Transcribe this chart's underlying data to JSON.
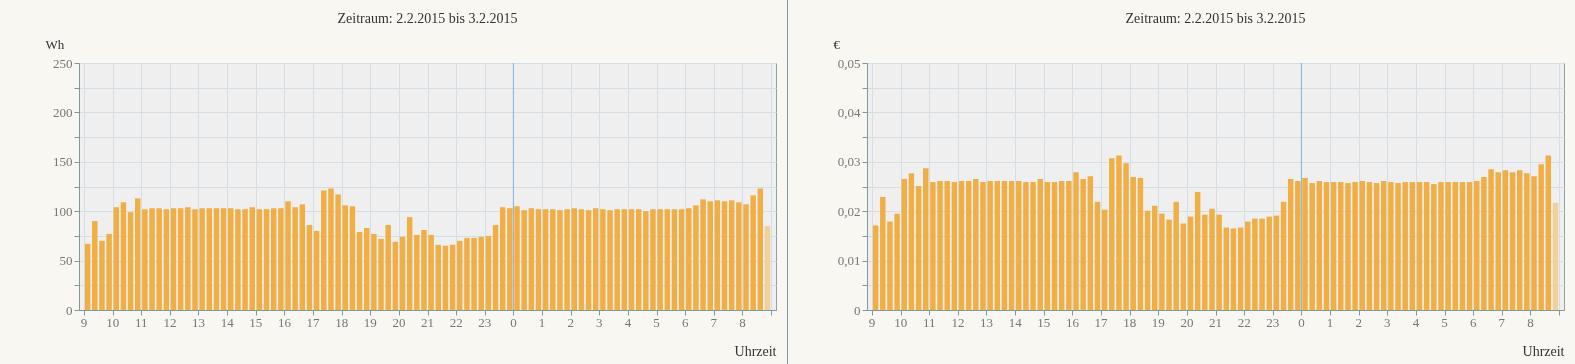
{
  "chart_data": [
    {
      "type": "bar",
      "title": "Zeitraum: 2.2.2015 bis 3.2.2015",
      "xlabel": "Uhrzeit",
      "ylabel": "Wh",
      "x": [
        "2015-02-02T09:00",
        "2015-02-02T09:15",
        "2015-02-02T09:30",
        "2015-02-02T09:45",
        "2015-02-02T10:00",
        "2015-02-02T10:15",
        "2015-02-02T10:30",
        "2015-02-02T10:45",
        "2015-02-02T11:00",
        "2015-02-02T11:15",
        "2015-02-02T11:30",
        "2015-02-02T11:45",
        "2015-02-02T12:00",
        "2015-02-02T12:15",
        "2015-02-02T12:30",
        "2015-02-02T12:45",
        "2015-02-02T13:00",
        "2015-02-02T13:15",
        "2015-02-02T13:30",
        "2015-02-02T13:45",
        "2015-02-02T14:00",
        "2015-02-02T14:15",
        "2015-02-02T14:30",
        "2015-02-02T14:45",
        "2015-02-02T15:00",
        "2015-02-02T15:15",
        "2015-02-02T15:30",
        "2015-02-02T15:45",
        "2015-02-02T16:00",
        "2015-02-02T16:15",
        "2015-02-02T16:30",
        "2015-02-02T16:45",
        "2015-02-02T17:00",
        "2015-02-02T17:15",
        "2015-02-02T17:30",
        "2015-02-02T17:45",
        "2015-02-02T18:00",
        "2015-02-02T18:15",
        "2015-02-02T18:30",
        "2015-02-02T18:45",
        "2015-02-02T19:00",
        "2015-02-02T19:15",
        "2015-02-02T19:30",
        "2015-02-02T19:45",
        "2015-02-02T20:00",
        "2015-02-02T20:15",
        "2015-02-02T20:30",
        "2015-02-02T20:45",
        "2015-02-02T21:00",
        "2015-02-02T21:15",
        "2015-02-02T21:30",
        "2015-02-02T21:45",
        "2015-02-02T22:00",
        "2015-02-02T22:15",
        "2015-02-02T22:30",
        "2015-02-02T22:45",
        "2015-02-02T23:00",
        "2015-02-02T23:15",
        "2015-02-02T23:30",
        "2015-02-02T23:45",
        "2015-02-03T00:00",
        "2015-02-03T00:15",
        "2015-02-03T00:30",
        "2015-02-03T00:45",
        "2015-02-03T01:00",
        "2015-02-03T01:15",
        "2015-02-03T01:30",
        "2015-02-03T01:45",
        "2015-02-03T02:00",
        "2015-02-03T02:15",
        "2015-02-03T02:30",
        "2015-02-03T02:45",
        "2015-02-03T03:00",
        "2015-02-03T03:15",
        "2015-02-03T03:30",
        "2015-02-03T03:45",
        "2015-02-03T04:00",
        "2015-02-03T04:15",
        "2015-02-03T04:30",
        "2015-02-03T04:45",
        "2015-02-03T05:00",
        "2015-02-03T05:15",
        "2015-02-03T05:30",
        "2015-02-03T05:45",
        "2015-02-03T06:00",
        "2015-02-03T06:15",
        "2015-02-03T06:30",
        "2015-02-03T06:45",
        "2015-02-03T07:00",
        "2015-02-03T07:15",
        "2015-02-03T07:30",
        "2015-02-03T07:45",
        "2015-02-03T08:00",
        "2015-02-03T08:15",
        "2015-02-03T08:30",
        "2015-02-03T08:45"
      ],
      "values": [
        67,
        90,
        70,
        77,
        104,
        109,
        99,
        113,
        102,
        103,
        103,
        102,
        103,
        103,
        104,
        102,
        103,
        103,
        103,
        103,
        103,
        102,
        102,
        104,
        102,
        102,
        103,
        103,
        110,
        104,
        107,
        86,
        80,
        121,
        123,
        117,
        106,
        105,
        79,
        83,
        77,
        72,
        86,
        69,
        74,
        94,
        76,
        81,
        76,
        66,
        65,
        66,
        70,
        73,
        73,
        74,
        75,
        86,
        104,
        103,
        105,
        101,
        103,
        102,
        102,
        102,
        101,
        102,
        103,
        102,
        101,
        103,
        102,
        101,
        102,
        102,
        102,
        102,
        100,
        102,
        102,
        102,
        102,
        102,
        103,
        106,
        112,
        110,
        111,
        110,
        111,
        109,
        107,
        116,
        123,
        85
      ],
      "colors": [
        "#f0ae45",
        "#f0ae45",
        "#f0ae45",
        "#f0ae45",
        "#f0ae45",
        "#f0ae45",
        "#f0ae45",
        "#f0ae45",
        "#f0ae45",
        "#f0ae45",
        "#f0ae45",
        "#f0ae45",
        "#f0ae45",
        "#f0ae45",
        "#f0ae45",
        "#f0ae45",
        "#f0ae45",
        "#f0ae45",
        "#f0ae45",
        "#f0ae45",
        "#f0ae45",
        "#f0ae45",
        "#f0ae45",
        "#f0ae45",
        "#f0ae45",
        "#f0ae45",
        "#f0ae45",
        "#f0ae45",
        "#f0ae45",
        "#f0ae45",
        "#f0ae45",
        "#f0ae45",
        "#f0ae45",
        "#f0ae45",
        "#f0ae45",
        "#f0ae45",
        "#f0ae45",
        "#f0ae45",
        "#f0ae45",
        "#f0ae45",
        "#f0ae45",
        "#f0ae45",
        "#f0ae45",
        "#f0ae45",
        "#f0ae45",
        "#f0ae45",
        "#f0ae45",
        "#f0ae45",
        "#f0ae45",
        "#f0ae45",
        "#f0ae45",
        "#f0ae45",
        "#f0ae45",
        "#f0ae45",
        "#f0ae45",
        "#f0ae45",
        "#f0ae45",
        "#f0ae45",
        "#f0ae45",
        "#f0ae45",
        "#f0ae45",
        "#f0ae45",
        "#f0ae45",
        "#f0ae45",
        "#f0ae45",
        "#f0ae45",
        "#f0ae45",
        "#f0ae45",
        "#f0ae45",
        "#f0ae45",
        "#f0ae45",
        "#f0ae45",
        "#f0ae45",
        "#f0ae45",
        "#f0ae45",
        "#f0ae45",
        "#f0ae45",
        "#f0ae45",
        "#f0ae45",
        "#f0ae45",
        "#f0ae45",
        "#f0ae45",
        "#f0ae45",
        "#f0ae45",
        "#f0ae45",
        "#f0ae45",
        "#f0ae45",
        "#f0ae45",
        "#f0ae45",
        "#f0ae45",
        "#f0ae45",
        "#f0ae45",
        "#f0ae45",
        "#f0ae45",
        "#f0ae45",
        "#f2d09c"
      ],
      "xlim": [
        "2015-02-02T09:00",
        "2015-02-03T09:00"
      ],
      "xticks": [
        {
          "value": "2015-02-02T09:00",
          "label": "9"
        },
        {
          "value": "2015-02-02T10:00",
          "label": "10"
        },
        {
          "value": "2015-02-02T11:00",
          "label": "11"
        },
        {
          "value": "2015-02-02T12:00",
          "label": "12"
        },
        {
          "value": "2015-02-02T13:00",
          "label": "13"
        },
        {
          "value": "2015-02-02T14:00",
          "label": "14"
        },
        {
          "value": "2015-02-02T15:00",
          "label": "15"
        },
        {
          "value": "2015-02-02T16:00",
          "label": "16"
        },
        {
          "value": "2015-02-02T17:00",
          "label": "17"
        },
        {
          "value": "2015-02-02T18:00",
          "label": "18"
        },
        {
          "value": "2015-02-02T19:00",
          "label": "19"
        },
        {
          "value": "2015-02-02T20:00",
          "label": "20"
        },
        {
          "value": "2015-02-02T21:00",
          "label": "21"
        },
        {
          "value": "2015-02-02T22:00",
          "label": "22"
        },
        {
          "value": "2015-02-02T23:00",
          "label": "23"
        },
        {
          "value": "2015-02-03T00:00",
          "label": "0"
        },
        {
          "value": "2015-02-03T01:00",
          "label": "1"
        },
        {
          "value": "2015-02-03T02:00",
          "label": "2"
        },
        {
          "value": "2015-02-03T03:00",
          "label": "3"
        },
        {
          "value": "2015-02-03T04:00",
          "label": "4"
        },
        {
          "value": "2015-02-03T05:00",
          "label": "5"
        },
        {
          "value": "2015-02-03T06:00",
          "label": "6"
        },
        {
          "value": "2015-02-03T07:00",
          "label": "7"
        },
        {
          "value": "2015-02-03T08:00",
          "label": "8"
        },
        {
          "value": "2015-02-03T09:00",
          "label": null
        }
      ],
      "ylim": [
        0,
        250
      ],
      "yticks": [
        0,
        {
          "value": 25,
          "label": null
        },
        50,
        {
          "value": 75,
          "label": null
        },
        100,
        {
          "value": 125,
          "label": null
        },
        150,
        {
          "value": 175,
          "label": null
        },
        200,
        {
          "value": 225,
          "label": null
        },
        250
      ],
      "grid": true,
      "ref_lines": [
        {
          "axis": "x",
          "value": "2015-02-03T00:00",
          "label": null,
          "color": "#7fb6e6"
        }
      ]
    },
    {
      "type": "bar",
      "title": "Zeitraum: 2.2.2015 bis 3.2.2015",
      "xlabel": "Uhrzeit",
      "ylabel": "€",
      "x": [
        "2015-02-02T09:00",
        "2015-02-02T09:15",
        "2015-02-02T09:30",
        "2015-02-02T09:45",
        "2015-02-02T10:00",
        "2015-02-02T10:15",
        "2015-02-02T10:30",
        "2015-02-02T10:45",
        "2015-02-02T11:00",
        "2015-02-02T11:15",
        "2015-02-02T11:30",
        "2015-02-02T11:45",
        "2015-02-02T12:00",
        "2015-02-02T12:15",
        "2015-02-02T12:30",
        "2015-02-02T12:45",
        "2015-02-02T13:00",
        "2015-02-02T13:15",
        "2015-02-02T13:30",
        "2015-02-02T13:45",
        "2015-02-02T14:00",
        "2015-02-02T14:15",
        "2015-02-02T14:30",
        "2015-02-02T14:45",
        "2015-02-02T15:00",
        "2015-02-02T15:15",
        "2015-02-02T15:30",
        "2015-02-02T15:45",
        "2015-02-02T16:00",
        "2015-02-02T16:15",
        "2015-02-02T16:30",
        "2015-02-02T16:45",
        "2015-02-02T17:00",
        "2015-02-02T17:15",
        "2015-02-02T17:30",
        "2015-02-02T17:45",
        "2015-02-02T18:00",
        "2015-02-02T18:15",
        "2015-02-02T18:30",
        "2015-02-02T18:45",
        "2015-02-02T19:00",
        "2015-02-02T19:15",
        "2015-02-02T19:30",
        "2015-02-02T19:45",
        "2015-02-02T20:00",
        "2015-02-02T20:15",
        "2015-02-02T20:30",
        "2015-02-02T20:45",
        "2015-02-02T21:00",
        "2015-02-02T21:15",
        "2015-02-02T21:30",
        "2015-02-02T21:45",
        "2015-02-02T22:00",
        "2015-02-02T22:15",
        "2015-02-02T22:30",
        "2015-02-02T22:45",
        "2015-02-02T23:00",
        "2015-02-02T23:15",
        "2015-02-02T23:30",
        "2015-02-02T23:45",
        "2015-02-03T00:00",
        "2015-02-03T00:15",
        "2015-02-03T00:30",
        "2015-02-03T00:45",
        "2015-02-03T01:00",
        "2015-02-03T01:15",
        "2015-02-03T01:30",
        "2015-02-03T01:45",
        "2015-02-03T02:00",
        "2015-02-03T02:15",
        "2015-02-03T02:30",
        "2015-02-03T02:45",
        "2015-02-03T03:00",
        "2015-02-03T03:15",
        "2015-02-03T03:30",
        "2015-02-03T03:45",
        "2015-02-03T04:00",
        "2015-02-03T04:15",
        "2015-02-03T04:30",
        "2015-02-03T04:45",
        "2015-02-03T05:00",
        "2015-02-03T05:15",
        "2015-02-03T05:30",
        "2015-02-03T05:45",
        "2015-02-03T06:00",
        "2015-02-03T06:15",
        "2015-02-03T06:30",
        "2015-02-03T06:45",
        "2015-02-03T07:00",
        "2015-02-03T07:15",
        "2015-02-03T07:30",
        "2015-02-03T07:45",
        "2015-02-03T08:00",
        "2015-02-03T08:15",
        "2015-02-03T08:30",
        "2015-02-03T08:45"
      ],
      "values": [
        0.0171,
        0.0229,
        0.0179,
        0.0195,
        0.0265,
        0.0277,
        0.0251,
        0.0287,
        0.0259,
        0.0261,
        0.0261,
        0.0259,
        0.0261,
        0.0261,
        0.0265,
        0.0259,
        0.0261,
        0.0261,
        0.0261,
        0.0261,
        0.0261,
        0.0259,
        0.0259,
        0.0265,
        0.0259,
        0.0259,
        0.0261,
        0.0261,
        0.0279,
        0.0265,
        0.0271,
        0.0219,
        0.0203,
        0.0307,
        0.0313,
        0.0297,
        0.0269,
        0.0267,
        0.0201,
        0.0211,
        0.0195,
        0.0183,
        0.0219,
        0.0175,
        0.0189,
        0.0239,
        0.0193,
        0.0205,
        0.0193,
        0.0167,
        0.0165,
        0.0167,
        0.0179,
        0.0185,
        0.0185,
        0.0189,
        0.0191,
        0.0219,
        0.0265,
        0.0261,
        0.0267,
        0.0257,
        0.0261,
        0.0259,
        0.0259,
        0.0259,
        0.0257,
        0.0259,
        0.0261,
        0.0259,
        0.0257,
        0.0261,
        0.0259,
        0.0257,
        0.0259,
        0.0259,
        0.0259,
        0.0259,
        0.0255,
        0.0259,
        0.0259,
        0.0259,
        0.0259,
        0.0259,
        0.0261,
        0.0269,
        0.0285,
        0.0279,
        0.0283,
        0.0279,
        0.0283,
        0.0277,
        0.0271,
        0.0295,
        0.0313,
        0.0217
      ],
      "colors": [
        "#f0ae45",
        "#f0ae45",
        "#f0ae45",
        "#f0ae45",
        "#f0ae45",
        "#f0ae45",
        "#f0ae45",
        "#f0ae45",
        "#f0ae45",
        "#f0ae45",
        "#f0ae45",
        "#f0ae45",
        "#f0ae45",
        "#f0ae45",
        "#f0ae45",
        "#f0ae45",
        "#f0ae45",
        "#f0ae45",
        "#f0ae45",
        "#f0ae45",
        "#f0ae45",
        "#f0ae45",
        "#f0ae45",
        "#f0ae45",
        "#f0ae45",
        "#f0ae45",
        "#f0ae45",
        "#f0ae45",
        "#f0ae45",
        "#f0ae45",
        "#f0ae45",
        "#f0ae45",
        "#f0ae45",
        "#f0ae45",
        "#f0ae45",
        "#f0ae45",
        "#f0ae45",
        "#f0ae45",
        "#f0ae45",
        "#f0ae45",
        "#f0ae45",
        "#f0ae45",
        "#f0ae45",
        "#f0ae45",
        "#f0ae45",
        "#f0ae45",
        "#f0ae45",
        "#f0ae45",
        "#f0ae45",
        "#f0ae45",
        "#f0ae45",
        "#f0ae45",
        "#f0ae45",
        "#f0ae45",
        "#f0ae45",
        "#f0ae45",
        "#f0ae45",
        "#f0ae45",
        "#f0ae45",
        "#f0ae45",
        "#f0ae45",
        "#f0ae45",
        "#f0ae45",
        "#f0ae45",
        "#f0ae45",
        "#f0ae45",
        "#f0ae45",
        "#f0ae45",
        "#f0ae45",
        "#f0ae45",
        "#f0ae45",
        "#f0ae45",
        "#f0ae45",
        "#f0ae45",
        "#f0ae45",
        "#f0ae45",
        "#f0ae45",
        "#f0ae45",
        "#f0ae45",
        "#f0ae45",
        "#f0ae45",
        "#f0ae45",
        "#f0ae45",
        "#f0ae45",
        "#f0ae45",
        "#f0ae45",
        "#f0ae45",
        "#f0ae45",
        "#f0ae45",
        "#f0ae45",
        "#f0ae45",
        "#f0ae45",
        "#f0ae45",
        "#f0ae45",
        "#f0ae45",
        "#f2d09c"
      ],
      "xlim": [
        "2015-02-02T09:00",
        "2015-02-03T09:00"
      ],
      "xticks": [
        {
          "value": "2015-02-02T09:00",
          "label": "9"
        },
        {
          "value": "2015-02-02T10:00",
          "label": "10"
        },
        {
          "value": "2015-02-02T11:00",
          "label": "11"
        },
        {
          "value": "2015-02-02T12:00",
          "label": "12"
        },
        {
          "value": "2015-02-02T13:00",
          "label": "13"
        },
        {
          "value": "2015-02-02T14:00",
          "label": "14"
        },
        {
          "value": "2015-02-02T15:00",
          "label": "15"
        },
        {
          "value": "2015-02-02T16:00",
          "label": "16"
        },
        {
          "value": "2015-02-02T17:00",
          "label": "17"
        },
        {
          "value": "2015-02-02T18:00",
          "label": "18"
        },
        {
          "value": "2015-02-02T19:00",
          "label": "19"
        },
        {
          "value": "2015-02-02T20:00",
          "label": "20"
        },
        {
          "value": "2015-02-02T21:00",
          "label": "21"
        },
        {
          "value": "2015-02-02T22:00",
          "label": "22"
        },
        {
          "value": "2015-02-02T23:00",
          "label": "23"
        },
        {
          "value": "2015-02-03T00:00",
          "label": "0"
        },
        {
          "value": "2015-02-03T01:00",
          "label": "1"
        },
        {
          "value": "2015-02-03T02:00",
          "label": "2"
        },
        {
          "value": "2015-02-03T03:00",
          "label": "3"
        },
        {
          "value": "2015-02-03T04:00",
          "label": "4"
        },
        {
          "value": "2015-02-03T05:00",
          "label": "5"
        },
        {
          "value": "2015-02-03T06:00",
          "label": "6"
        },
        {
          "value": "2015-02-03T07:00",
          "label": "7"
        },
        {
          "value": "2015-02-03T08:00",
          "label": "8"
        },
        {
          "value": "2015-02-03T09:00",
          "label": null
        }
      ],
      "ylim": [
        0,
        0.05
      ],
      "yticks": [
        0,
        {
          "value": 0.005,
          "label": null
        },
        {
          "value": 0.01,
          "label": "0,01"
        },
        {
          "value": 0.015,
          "label": null
        },
        {
          "value": 0.02,
          "label": "0,02"
        },
        {
          "value": 0.025,
          "label": null
        },
        {
          "value": 0.03,
          "label": "0,03"
        },
        {
          "value": 0.035,
          "label": null
        },
        {
          "value": 0.04,
          "label": "0,04"
        },
        {
          "value": 0.045,
          "label": null
        },
        {
          "value": 0.05,
          "label": "0,05"
        }
      ],
      "grid": true,
      "ref_lines": [
        {
          "axis": "x",
          "value": "2015-02-03T00:00",
          "label": null,
          "color": "#7fb6e6"
        }
      ]
    }
  ]
}
